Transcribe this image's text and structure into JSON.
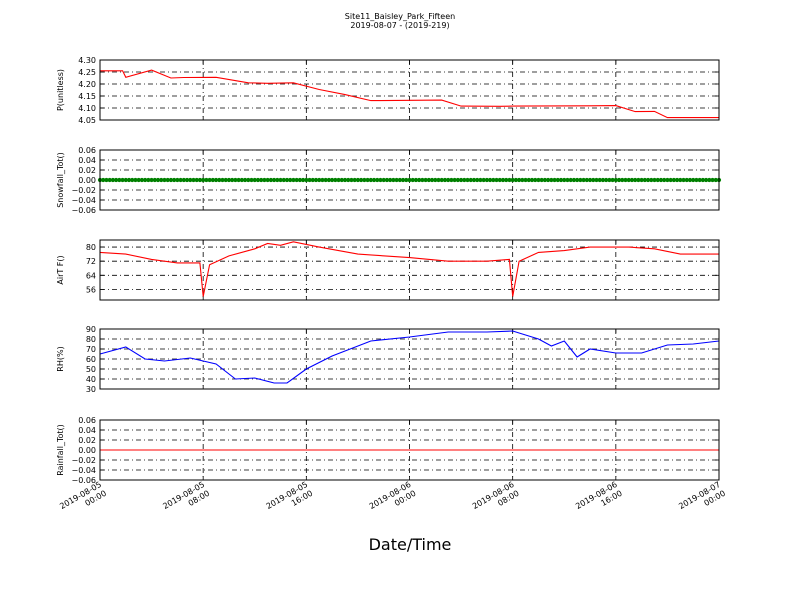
{
  "figure": {
    "title_line1": "Site11_Baisley_Park_Fifteen",
    "title_line2": "2019-08-07 - (2019-219)",
    "xlabel": "Date/Time",
    "x_tick_labels": [
      [
        "2019-08-05",
        "00:00"
      ],
      [
        "2019-08-05",
        "08:00"
      ],
      [
        "2019-08-05",
        "16:00"
      ],
      [
        "2019-08-06",
        "00:00"
      ],
      [
        "2019-08-06",
        "08:00"
      ],
      [
        "2019-08-06",
        "16:00"
      ],
      [
        "2019-08-07",
        "00:00"
      ]
    ]
  },
  "chart_data": [
    {
      "type": "line",
      "ylabel": "P(unitless)",
      "color": "#ff0000",
      "ylim": [
        4.05,
        4.3
      ],
      "yticks": [
        "4.30",
        "4.25",
        "4.20",
        "4.15",
        "4.10",
        "4.05"
      ],
      "ytick_values": [
        4.3,
        4.25,
        4.2,
        4.15,
        4.1,
        4.05
      ],
      "xlim": [
        "2019-08-05 00:00",
        "2019-08-07 00:00"
      ],
      "grid": true,
      "x": [
        "2019-08-05 00:00",
        "2019-08-05 01:45",
        "2019-08-05 02:00",
        "2019-08-05 04:00",
        "2019-08-05 05:30",
        "2019-08-05 06:30",
        "2019-08-05 09:00",
        "2019-08-05 11:30",
        "2019-08-05 13:00",
        "2019-08-05 15:00",
        "2019-08-05 17:00",
        "2019-08-05 19:00",
        "2019-08-05 21:00",
        "2019-08-06 02:30",
        "2019-08-06 04:00",
        "2019-08-06 07:00",
        "2019-08-06 08:00",
        "2019-08-06 14:00",
        "2019-08-06 16:00",
        "2019-08-06 17:30",
        "2019-08-06 19:00",
        "2019-08-06 20:00",
        "2019-08-06 22:00",
        "2019-08-07 00:00"
      ],
      "y": [
        4.255,
        4.255,
        4.228,
        4.258,
        4.225,
        4.227,
        4.228,
        4.205,
        4.203,
        4.205,
        4.177,
        4.156,
        4.131,
        4.133,
        4.108,
        4.107,
        4.108,
        4.109,
        4.11,
        4.085,
        4.086,
        4.06,
        4.06,
        4.06
      ]
    },
    {
      "type": "line",
      "ylabel": "Snowfall_Tot()",
      "color": "#008000",
      "ylim": [
        -0.06,
        0.06
      ],
      "yticks": [
        "0.06",
        "0.04",
        "0.02",
        "0.00",
        "−0.02",
        "−0.04",
        "−0.06"
      ],
      "ytick_values": [
        0.06,
        0.04,
        0.02,
        0.0,
        -0.02,
        -0.04,
        -0.06
      ],
      "xlim": [
        "2019-08-05 00:00",
        "2019-08-07 00:00"
      ],
      "grid": true,
      "x": [
        "2019-08-05 00:00",
        "2019-08-07 00:00"
      ],
      "y": [
        0.0,
        0.0
      ]
    },
    {
      "type": "line",
      "ylabel": "AirT F()",
      "color": "#ff0000",
      "ylim": [
        50,
        84
      ],
      "yticks": [
        "80",
        "72",
        "64",
        "56"
      ],
      "ytick_values": [
        80,
        72,
        64,
        56
      ],
      "xlim": [
        "2019-08-05 00:00",
        "2019-08-07 00:00"
      ],
      "grid": true,
      "x": [
        "2019-08-05 00:00",
        "2019-08-05 02:00",
        "2019-08-05 04:00",
        "2019-08-05 06:00",
        "2019-08-05 07:45",
        "2019-08-05 08:00",
        "2019-08-05 08:30",
        "2019-08-05 10:00",
        "2019-08-05 12:00",
        "2019-08-05 13:00",
        "2019-08-05 14:00",
        "2019-08-05 15:00",
        "2019-08-05 17:00",
        "2019-08-05 20:00",
        "2019-08-06 00:00",
        "2019-08-06 03:00",
        "2019-08-06 06:00",
        "2019-08-06 07:45",
        "2019-08-06 08:00",
        "2019-08-06 08:30",
        "2019-08-06 10:00",
        "2019-08-06 12:00",
        "2019-08-06 14:00",
        "2019-08-06 17:00",
        "2019-08-06 19:00",
        "2019-08-06 21:00",
        "2019-08-07 00:00"
      ],
      "y": [
        77,
        76,
        73,
        71,
        71,
        52,
        70,
        75,
        79,
        82,
        81,
        83,
        80,
        76,
        74,
        72,
        72,
        73,
        52,
        72,
        77,
        78,
        80,
        80,
        79,
        76,
        76
      ]
    },
    {
      "type": "line",
      "ylabel": "RH(%)",
      "color": "#0000ff",
      "ylim": [
        30,
        90
      ],
      "yticks": [
        "90",
        "80",
        "70",
        "60",
        "50",
        "40",
        "30"
      ],
      "ytick_values": [
        90,
        80,
        70,
        60,
        50,
        40,
        30
      ],
      "xlim": [
        "2019-08-05 00:00",
        "2019-08-07 00:00"
      ],
      "grid": true,
      "x": [
        "2019-08-05 00:00",
        "2019-08-05 02:00",
        "2019-08-05 03:30",
        "2019-08-05 05:00",
        "2019-08-05 07:00",
        "2019-08-05 09:00",
        "2019-08-05 10:30",
        "2019-08-05 12:00",
        "2019-08-05 13:30",
        "2019-08-05 14:30",
        "2019-08-05 16:00",
        "2019-08-05 18:00",
        "2019-08-05 21:00",
        "2019-08-06 00:00",
        "2019-08-06 03:00",
        "2019-08-06 06:00",
        "2019-08-06 08:00",
        "2019-08-06 10:00",
        "2019-08-06 11:00",
        "2019-08-06 12:00",
        "2019-08-06 13:00",
        "2019-08-06 14:00",
        "2019-08-06 16:00",
        "2019-08-06 18:00",
        "2019-08-06 20:00",
        "2019-08-06 22:00",
        "2019-08-07 00:00"
      ],
      "y": [
        65,
        72,
        60,
        58,
        61,
        55,
        40,
        41,
        36,
        36,
        50,
        63,
        78,
        82,
        87,
        87,
        88,
        80,
        73,
        78,
        62,
        70,
        66,
        66,
        74,
        75,
        78
      ]
    },
    {
      "type": "line",
      "ylabel": "Rainfall_Tot()",
      "color": "#ff0000",
      "ylim": [
        -0.06,
        0.06
      ],
      "yticks": [
        "0.06",
        "0.04",
        "0.02",
        "0.00",
        "−0.02",
        "−0.04",
        "−0.06"
      ],
      "ytick_values": [
        0.06,
        0.04,
        0.02,
        0.0,
        -0.02,
        -0.04,
        -0.06
      ],
      "xlim": [
        "2019-08-05 00:00",
        "2019-08-07 00:00"
      ],
      "grid": true,
      "x": [
        "2019-08-05 00:00",
        "2019-08-07 00:00"
      ],
      "y": [
        0.0,
        0.0
      ]
    }
  ]
}
